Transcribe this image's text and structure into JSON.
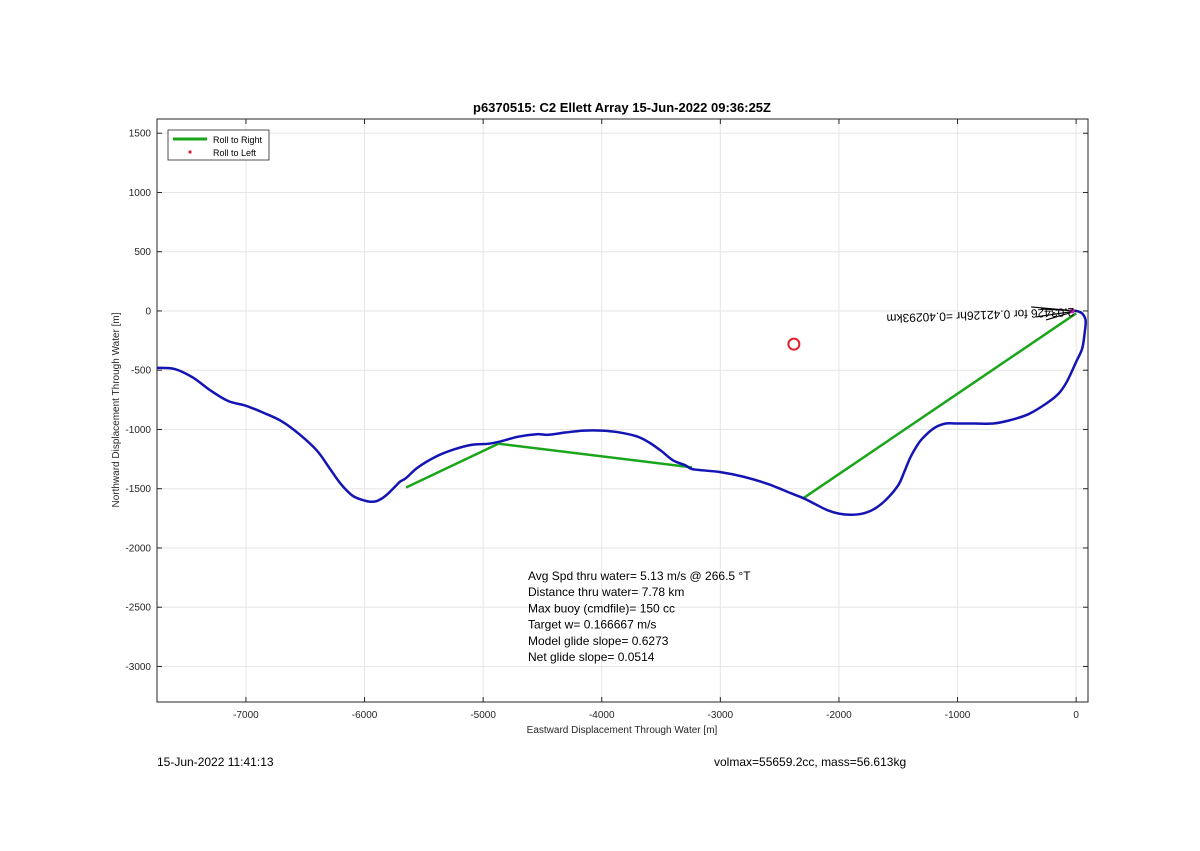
{
  "chart_data": {
    "type": "line",
    "title": "p6370515: C2 Ellett Array 15-Jun-2022 09:36:25Z",
    "xlabel": "Eastward Displacement Through Water [m]",
    "ylabel": "Northward Displacement Through Water [m]",
    "xlim": [
      -7750,
      100
    ],
    "ylim": [
      -3300,
      1620
    ],
    "xticks": [
      -7000,
      -6000,
      -5000,
      -4000,
      -3000,
      -2000,
      -1000,
      0
    ],
    "yticks": [
      1500,
      1000,
      500,
      0,
      -500,
      -1000,
      -1500,
      -2000,
      -2500,
      -3000
    ],
    "grid": true,
    "legend": {
      "position": "top-left",
      "entries": [
        {
          "label": "Roll to Right",
          "color": "#1aa51a",
          "style": "line"
        },
        {
          "label": "Roll to Left",
          "color": "#e0203a",
          "style": "dot"
        }
      ]
    },
    "series": [
      {
        "color": "#1414b4",
        "x": [
          -7750,
          -7600,
          -7450,
          -7300,
          -7150,
          -7000,
          -6850,
          -6700,
          -6550,
          -6400,
          -6300,
          -6200,
          -6100,
          -6000,
          -5950,
          -5900,
          -5850,
          -5800,
          -5750,
          -5700,
          -5650,
          -5550,
          -5400,
          -5250,
          -5100,
          -4950,
          -4850,
          -4700,
          -4550,
          -4450,
          -4300,
          -4150,
          -4000,
          -3850,
          -3700,
          -3600,
          -3500,
          -3400,
          -3300,
          -3250,
          -3200,
          -3000,
          -2800,
          -2600,
          -2400,
          -2300,
          -2200,
          -2100,
          -2000,
          -1900,
          -1800,
          -1700,
          -1600,
          -1500,
          -1450,
          -1400,
          -1350,
          -1300,
          -1200,
          -1100,
          -1000,
          -850,
          -700,
          -550,
          -400,
          -250,
          -150,
          -80,
          0,
          50,
          70,
          80,
          50,
          0,
          -30
        ],
        "y": [
          -480,
          -490,
          -560,
          -670,
          -760,
          -800,
          -860,
          -930,
          -1040,
          -1180,
          -1320,
          -1460,
          -1560,
          -1600,
          -1610,
          -1605,
          -1580,
          -1540,
          -1490,
          -1440,
          -1410,
          -1320,
          -1230,
          -1170,
          -1130,
          -1120,
          -1100,
          -1060,
          -1040,
          -1045,
          -1025,
          -1010,
          -1010,
          -1025,
          -1060,
          -1110,
          -1180,
          -1260,
          -1300,
          -1330,
          -1340,
          -1360,
          -1400,
          -1460,
          -1540,
          -1580,
          -1630,
          -1680,
          -1710,
          -1720,
          -1710,
          -1670,
          -1590,
          -1470,
          -1360,
          -1240,
          -1150,
          -1080,
          -990,
          -950,
          -950,
          -950,
          -950,
          -920,
          -870,
          -780,
          -700,
          -600,
          -430,
          -320,
          -200,
          -80,
          -20,
          0,
          0
        ]
      },
      {
        "name": "Roll to Right",
        "color": "#1aa51a",
        "segments": [
          {
            "x": [
              -5650,
              -4870
            ],
            "y": [
              -1490,
              -1120
            ]
          },
          {
            "x": [
              -4870,
              -3240
            ],
            "y": [
              -1120,
              -1320
            ]
          },
          {
            "x": [
              -2300,
              0
            ],
            "y": [
              -1580,
              -20
            ]
          }
        ]
      }
    ],
    "markers": [
      {
        "x": -2380,
        "y": -280,
        "color": "#e0202a",
        "shape": "circle"
      }
    ],
    "annotation": {
      "text": "2.03426 for 0.42126hr =0.40293km",
      "x": 0,
      "y": 0
    }
  },
  "stats": [
    "Avg Spd thru water=  5.13 m/s @ 266.5 °T",
    "Distance thru water=  7.78 km",
    "Max buoy (cmdfile)= 150 cc",
    "Target w= 0.166667 m/s",
    "Model glide slope= 0.6273",
    "Net glide slope= 0.0514"
  ],
  "footer": {
    "left": "15-Jun-2022 11:41:13",
    "right": "volmax=55659.2cc, mass=56.613kg"
  },
  "colors": {
    "grid": "#e6e6e6",
    "axis": "#262626"
  }
}
